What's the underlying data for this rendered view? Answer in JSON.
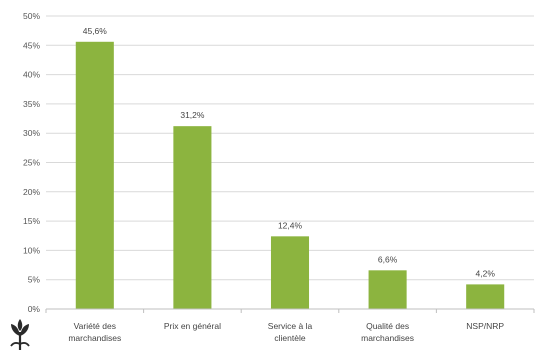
{
  "chart_data": {
    "type": "bar",
    "title": "",
    "xlabel": "",
    "ylabel": "",
    "categories": [
      [
        "Variété des",
        "marchandises"
      ],
      [
        "Prix en général"
      ],
      [
        "Service à la",
        "clientèle"
      ],
      [
        "Qualité des",
        "marchandises"
      ],
      [
        "NSP/NRP"
      ]
    ],
    "values": [
      45.6,
      31.2,
      12.4,
      6.6,
      4.2
    ],
    "data_labels": [
      "45,6%",
      "31,2%",
      "12,4%",
      "6,6%",
      "4,2%"
    ],
    "ylim": [
      0,
      50
    ],
    "yticks": [
      0,
      5,
      10,
      15,
      20,
      25,
      30,
      35,
      40,
      45,
      50
    ],
    "ytick_labels": [
      "0%",
      "5%",
      "10%",
      "15%",
      "20%",
      "25%",
      "30%",
      "35%",
      "40%",
      "45%",
      "50%"
    ],
    "grid": true,
    "legend": "none",
    "colors": {
      "bar": "#8cb43f",
      "grid": "#d9d9d9",
      "axis": "#bfbfbf",
      "logo": "#2b2b2b"
    }
  },
  "logo": {
    "icon": "plant-logo-icon"
  }
}
